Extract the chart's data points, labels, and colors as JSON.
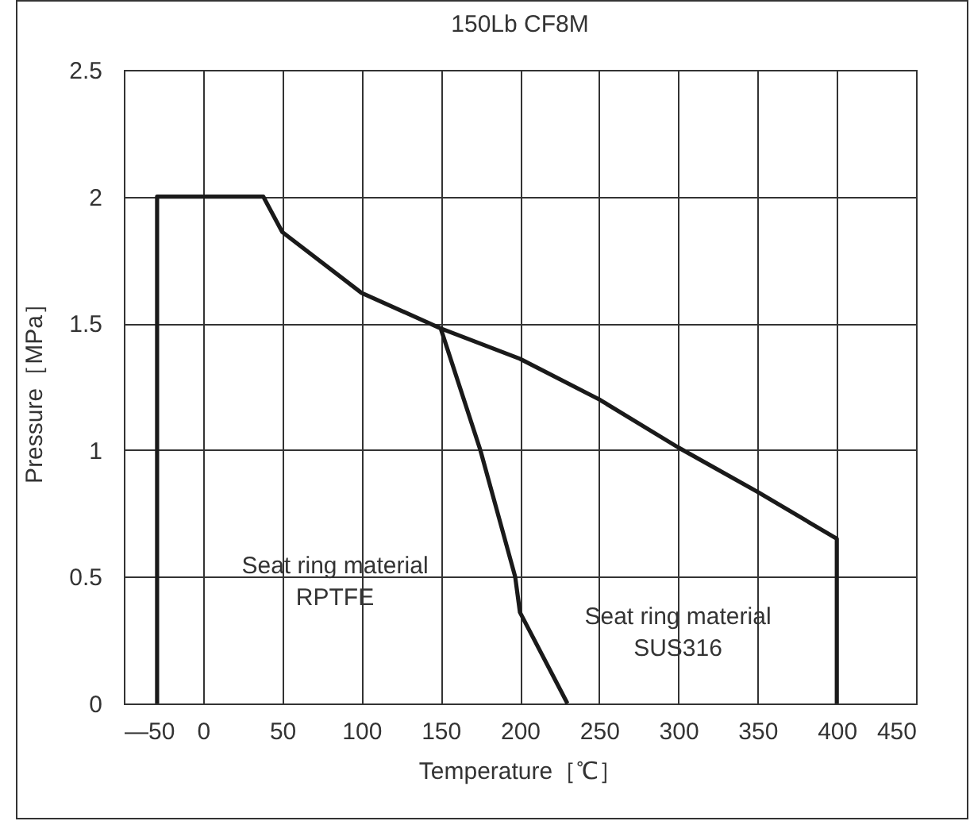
{
  "chart_data": {
    "type": "line",
    "title": "150Lb CF8M",
    "xlabel": "Temperature［℃］",
    "ylabel": "Pressure［MPa］",
    "xlim": [
      -50,
      450
    ],
    "xticks": [
      {
        "value": -50,
        "label": "—50"
      },
      0,
      50,
      100,
      150,
      200,
      250,
      300,
      350,
      400,
      450
    ],
    "ylim": [
      0,
      2.5
    ],
    "yticks": [
      0,
      0.5,
      1,
      1.5,
      2,
      2.5
    ],
    "grid": true,
    "legend": false,
    "marker": "none",
    "line_style": "solid",
    "annotations": [
      "Seat ring material\nRPTFE",
      "Seat ring material\nSUS316"
    ],
    "series": [
      {
        "color": "#1a1a1a",
        "x": [
          -29,
          -29,
          38,
          50,
          100,
          150,
          175,
          197,
          200,
          230
        ],
        "values": [
          0,
          2,
          2,
          1.86,
          1.62,
          1.48,
          1.0,
          0.5,
          0.36,
          0
        ]
      },
      {
        "color": "#1a1a1a",
        "x": [
          150,
          200,
          250,
          300,
          350,
          400,
          400
        ],
        "values": [
          1.48,
          1.36,
          1.2,
          1.01,
          0.835,
          0.65,
          0
        ]
      }
    ]
  }
}
